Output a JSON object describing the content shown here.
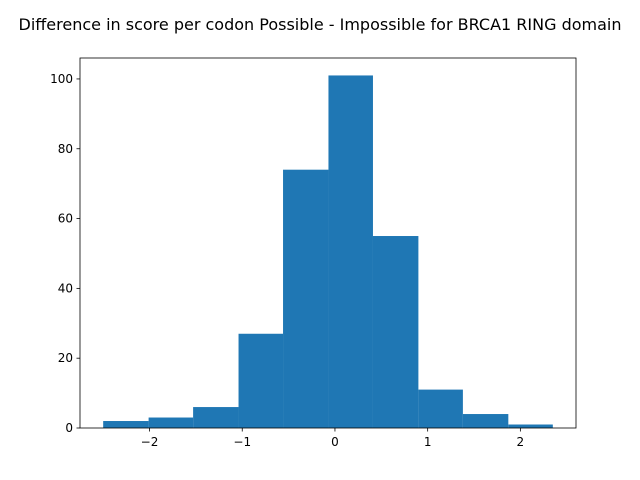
{
  "chart_data": {
    "type": "bar",
    "title": "Difference in score per codon Possible - Impossible for BRCA1 RING domain",
    "xlabel": "",
    "ylabel": "",
    "bar_color": "#1f77b4",
    "bin_edges": [
      -2.5,
      -2.01,
      -1.53,
      -1.04,
      -0.56,
      -0.07,
      0.41,
      0.9,
      1.38,
      1.87,
      2.35
    ],
    "counts": [
      2,
      3,
      6,
      27,
      74,
      101,
      55,
      11,
      4,
      1
    ],
    "xlim": [
      -2.75,
      2.6
    ],
    "ylim": [
      0,
      106
    ],
    "xticks": [
      -2,
      -1,
      0,
      1,
      2
    ],
    "xtick_labels": [
      "−2",
      "−1",
      "0",
      "1",
      "2"
    ],
    "yticks": [
      0,
      20,
      40,
      60,
      80,
      100
    ],
    "ytick_labels": [
      "0",
      "20",
      "40",
      "60",
      "80",
      "100"
    ],
    "grid": false,
    "legend": "none"
  }
}
